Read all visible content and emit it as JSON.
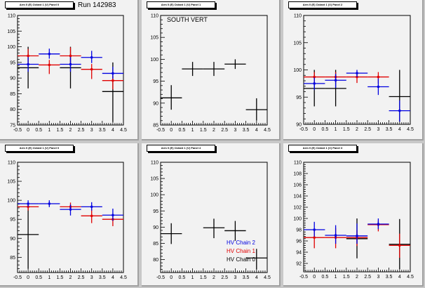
{
  "run_label": "Run 142983",
  "colors": {
    "chain0": "#000000",
    "chain1": "#e00000",
    "chain2": "#0000e0"
  },
  "legend": [
    {
      "label": "HV Chain 2",
      "color": "#0000e0"
    },
    {
      "label": "HV Chain 1",
      "color": "#e00000"
    },
    {
      "label": "HV Chain 0",
      "color": "#000000"
    }
  ],
  "chart_data": [
    {
      "type": "scatter",
      "title": "Arm 0 (E) Octant 1 (V) Panel 0",
      "annotation": "Run 142983",
      "xlim": [
        -0.5,
        4.5
      ],
      "ylim": [
        75,
        110
      ],
      "xticks": [
        "-0.5",
        "0",
        "0.5",
        "1",
        "1.5",
        "2",
        "2.5",
        "3",
        "3.5",
        "4",
        "4.5"
      ],
      "yticks": [
        75,
        80,
        85,
        90,
        95,
        100,
        105,
        110
      ],
      "series": [
        {
          "name": "HV Chain 0",
          "color": "#000000",
          "points": [
            {
              "x": 0,
              "y": 93.3,
              "xlo": -0.5,
              "xhi": 0.5,
              "ylo": 86.7,
              "yhi": 100
            },
            {
              "x": 2,
              "y": 93.3,
              "xlo": 1.5,
              "xhi": 2.5,
              "ylo": 86.7,
              "yhi": 100
            },
            {
              "x": 4,
              "y": 85.7,
              "xlo": 3.5,
              "xhi": 4.5,
              "ylo": 76,
              "yhi": 95
            }
          ]
        },
        {
          "name": "HV Chain 1",
          "color": "#e00000",
          "points": [
            {
              "x": 0,
              "y": 97.1,
              "xlo": -0.5,
              "xhi": 0.5,
              "ylo": 94.5,
              "yhi": 99.3
            },
            {
              "x": 1,
              "y": 94.2,
              "xlo": 0.5,
              "xhi": 1.5,
              "ylo": 91.3,
              "yhi": 95.8
            },
            {
              "x": 2,
              "y": 97.1,
              "xlo": 1.5,
              "xhi": 2.5,
              "ylo": 94.5,
              "yhi": 99.8
            },
            {
              "x": 3,
              "y": 92.8,
              "xlo": 2.5,
              "xhi": 3.5,
              "ylo": 89.7,
              "yhi": 94.5
            },
            {
              "x": 4,
              "y": 89.2,
              "xlo": 3.5,
              "xhi": 4.5,
              "ylo": 86.4,
              "yhi": 90.8
            }
          ]
        },
        {
          "name": "HV Chain 2",
          "color": "#0000e0",
          "points": [
            {
              "x": 0,
              "y": 94.4,
              "xlo": -0.5,
              "xhi": 0.5,
              "ylo": 92,
              "yhi": 96.7
            },
            {
              "x": 1,
              "y": 97.7,
              "xlo": 0.5,
              "xhi": 1.5,
              "ylo": 96.2,
              "yhi": 99.4
            },
            {
              "x": 2,
              "y": 94.4,
              "xlo": 1.5,
              "xhi": 2.5,
              "ylo": 92,
              "yhi": 96.7
            },
            {
              "x": 3,
              "y": 96.6,
              "xlo": 2.5,
              "xhi": 3.5,
              "ylo": 94.8,
              "yhi": 98.7
            },
            {
              "x": 4,
              "y": 91.5,
              "xlo": 3.5,
              "xhi": 4.5,
              "ylo": 89.8,
              "yhi": 93.6
            }
          ]
        }
      ]
    },
    {
      "type": "scatter",
      "title": "Arm 0 (E) Octant 1 (V) Panel 1",
      "annotation": "SOUTH VERT",
      "xlim": [
        -0.5,
        4.5
      ],
      "ylim": [
        85,
        110
      ],
      "xticks": [
        "-0.5",
        "0",
        "0.5",
        "1",
        "1.5",
        "2",
        "2.5",
        "3",
        "3.5",
        "4",
        "4.5"
      ],
      "yticks": [
        85,
        90,
        95,
        100,
        105,
        110
      ],
      "series": [
        {
          "name": "HV Chain 0",
          "color": "#000000",
          "points": [
            {
              "x": 0,
              "y": 91.2,
              "xlo": -0.5,
              "xhi": 0.5,
              "ylo": 88.5,
              "yhi": 94.1
            },
            {
              "x": 1,
              "y": 97.8,
              "xlo": 0.5,
              "xhi": 1.5,
              "ylo": 96.2,
              "yhi": 99.4
            },
            {
              "x": 2,
              "y": 97.8,
              "xlo": 1.5,
              "xhi": 2.5,
              "ylo": 96.2,
              "yhi": 99.4
            },
            {
              "x": 3,
              "y": 98.9,
              "xlo": 2.5,
              "xhi": 3.5,
              "ylo": 97.8,
              "yhi": 100
            },
            {
              "x": 4,
              "y": 88.5,
              "xlo": 3.5,
              "xhi": 4.5,
              "ylo": 86,
              "yhi": 91.1
            }
          ]
        }
      ]
    },
    {
      "type": "scatter",
      "title": "Arm 0 (E) Octant 1 (V) Panel 2",
      "annotation": "",
      "xlim": [
        -0.5,
        4.5
      ],
      "ylim": [
        90,
        110
      ],
      "xticks": [
        "-0.5",
        "0",
        "0.5",
        "1",
        "1.5",
        "2",
        "2.5",
        "3",
        "3.5",
        "4",
        "4.5"
      ],
      "yticks": [
        90,
        95,
        100,
        105,
        110
      ],
      "series": [
        {
          "name": "HV Chain 0",
          "color": "#000000",
          "points": [
            {
              "x": 0,
              "y": 96.6,
              "xlo": -0.5,
              "xhi": 0.5,
              "ylo": 93.3,
              "yhi": 100
            },
            {
              "x": 1,
              "y": 96.6,
              "xlo": 0.5,
              "xhi": 1.5,
              "ylo": 93.3,
              "yhi": 100
            },
            {
              "x": 4,
              "y": 95.1,
              "xlo": 3.5,
              "xhi": 4.5,
              "ylo": 90.5,
              "yhi": 100
            }
          ]
        },
        {
          "name": "HV Chain 1",
          "color": "#e00000",
          "points": [
            {
              "x": 0,
              "y": 98.7,
              "xlo": -0.5,
              "xhi": 0.5,
              "ylo": 97.5,
              "yhi": 99.6
            },
            {
              "x": 1,
              "y": 98.7,
              "xlo": 0.5,
              "xhi": 1.5,
              "ylo": 97.5,
              "yhi": 99.6
            },
            {
              "x": 2,
              "y": 98.7,
              "xlo": 1.5,
              "xhi": 2.5,
              "ylo": 97.6,
              "yhi": 99.6
            },
            {
              "x": 3,
              "y": 98.7,
              "xlo": 2.5,
              "xhi": 3.5,
              "ylo": 97.5,
              "yhi": 99.6
            }
          ]
        },
        {
          "name": "HV Chain 2",
          "color": "#0000e0",
          "points": [
            {
              "x": 0,
              "y": 97.5,
              "xlo": -0.5,
              "xhi": 0.5,
              "ylo": 96.3,
              "yhi": 98.6
            },
            {
              "x": 1,
              "y": 98.1,
              "xlo": 0.5,
              "xhi": 1.5,
              "ylo": 96.7,
              "yhi": 99.3
            },
            {
              "x": 2,
              "y": 99.4,
              "xlo": 1.5,
              "xhi": 2.5,
              "ylo": 98.7,
              "yhi": 100
            },
            {
              "x": 3,
              "y": 96.9,
              "xlo": 2.5,
              "xhi": 3.5,
              "ylo": 95.4,
              "yhi": 98.4
            },
            {
              "x": 4,
              "y": 92.5,
              "xlo": 3.5,
              "xhi": 4.5,
              "ylo": 90.5,
              "yhi": 94.4
            }
          ]
        }
      ]
    },
    {
      "type": "scatter",
      "title": "Arm 0 (E) Octant 1 (V) Panel 0",
      "annotation": "",
      "xlim": [
        -0.5,
        4.5
      ],
      "ylim": [
        81,
        110
      ],
      "xticks": [
        "-0.5",
        "0",
        "0.5",
        "1",
        "1.5",
        "2",
        "2.5",
        "3",
        "3.5",
        "4",
        "4.5"
      ],
      "yticks": [
        85,
        90,
        95,
        100,
        105,
        110
      ],
      "series": [
        {
          "name": "HV Chain 0",
          "color": "#000000",
          "points": [
            {
              "x": 0,
              "y": 91,
              "xlo": -0.5,
              "xhi": 0.5,
              "ylo": 82,
              "yhi": 98
            }
          ]
        },
        {
          "name": "HV Chain 1",
          "color": "#e00000",
          "points": [
            {
              "x": 0,
              "y": 98.3,
              "xlo": -0.5,
              "xhi": 0.5,
              "ylo": 97.3,
              "yhi": 99
            },
            {
              "x": 2,
              "y": 98.3,
              "xlo": 1.5,
              "xhi": 2.5,
              "ylo": 97.3,
              "yhi": 99.4
            },
            {
              "x": 3,
              "y": 95.9,
              "xlo": 2.5,
              "xhi": 3.5,
              "ylo": 94,
              "yhi": 97.7
            },
            {
              "x": 4,
              "y": 95,
              "xlo": 3.5,
              "xhi": 4.5,
              "ylo": 93.2,
              "yhi": 96.1
            }
          ]
        },
        {
          "name": "HV Chain 2",
          "color": "#0000e0",
          "points": [
            {
              "x": 0,
              "y": 99.1,
              "xlo": -0.5,
              "xhi": 0.5,
              "ylo": 98.3,
              "yhi": 100
            },
            {
              "x": 1,
              "y": 99.1,
              "xlo": 0.5,
              "xhi": 1.5,
              "ylo": 98.2,
              "yhi": 100
            },
            {
              "x": 2,
              "y": 97.6,
              "xlo": 1.5,
              "xhi": 2.5,
              "ylo": 96,
              "yhi": 98.9
            },
            {
              "x": 3,
              "y": 98.3,
              "xlo": 2.5,
              "xhi": 3.5,
              "ylo": 97.3,
              "yhi": 99.5
            },
            {
              "x": 4,
              "y": 96.1,
              "xlo": 3.5,
              "xhi": 4.5,
              "ylo": 94.6,
              "yhi": 97.8
            }
          ]
        }
      ]
    },
    {
      "type": "scatter",
      "title": "Arm 0 (E) Octant 1 (V) Panel 4",
      "annotation": "",
      "legend_placement": "bottom-right",
      "xlim": [
        -0.5,
        4.5
      ],
      "ylim": [
        76,
        110
      ],
      "xticks": [
        "-0.5",
        "0",
        "0.5",
        "1",
        "1.5",
        "2",
        "2.5",
        "3",
        "3.5",
        "4",
        "4.5"
      ],
      "yticks": [
        80,
        85,
        90,
        95,
        100,
        105,
        110
      ],
      "series": [
        {
          "name": "HV Chain 0",
          "color": "#000000",
          "points": [
            {
              "x": 0,
              "y": 88,
              "xlo": -0.5,
              "xhi": 0.5,
              "ylo": 84.8,
              "yhi": 91.2
            },
            {
              "x": 2,
              "y": 89.8,
              "xlo": 1.5,
              "xhi": 2.5,
              "ylo": 86.6,
              "yhi": 92.6
            },
            {
              "x": 3,
              "y": 88.9,
              "xlo": 2.5,
              "xhi": 3.5,
              "ylo": 85.8,
              "yhi": 91.9
            },
            {
              "x": 4,
              "y": 80.5,
              "xlo": 3.5,
              "xhi": 4.5,
              "ylo": 77,
              "yhi": 83.3
            }
          ]
        }
      ]
    },
    {
      "type": "scatter",
      "title": "Arm 0 (E) Octant 1 (V) Panel 3",
      "annotation": "",
      "xlim": [
        -0.5,
        4.5
      ],
      "ylim": [
        90.5,
        110
      ],
      "xticks": [
        "-0.5",
        "0",
        "0.5",
        "1",
        "1.5",
        "2",
        "2.5",
        "3",
        "3.5",
        "4",
        "4.5"
      ],
      "yticks": [
        92,
        94,
        96,
        98,
        100,
        102,
        104,
        106,
        108,
        110
      ],
      "series": [
        {
          "name": "HV Chain 0",
          "color": "#000000",
          "points": [
            {
              "x": 2,
              "y": 96.4,
              "xlo": 1.5,
              "xhi": 2.5,
              "ylo": 92.9,
              "yhi": 100
            },
            {
              "x": 4,
              "y": 95.4,
              "xlo": 3.5,
              "xhi": 4.5,
              "ylo": 91,
              "yhi": 99.9
            }
          ]
        },
        {
          "name": "HV Chain 1",
          "color": "#e00000",
          "points": [
            {
              "x": 0,
              "y": 96.6,
              "xlo": -0.5,
              "xhi": 0.5,
              "ylo": 94.7,
              "yhi": 98
            },
            {
              "x": 1,
              "y": 96.6,
              "xlo": 0.5,
              "xhi": 1.5,
              "ylo": 94.7,
              "yhi": 98.3
            },
            {
              "x": 2,
              "y": 96.6,
              "xlo": 1.5,
              "xhi": 2.5,
              "ylo": 95.1,
              "yhi": 97.9
            },
            {
              "x": 3,
              "y": 98.9,
              "xlo": 2.5,
              "xhi": 3.5,
              "ylo": 97.7,
              "yhi": 99.6
            },
            {
              "x": 4,
              "y": 95.2,
              "xlo": 3.5,
              "xhi": 4.5,
              "ylo": 93,
              "yhi": 97.3
            }
          ]
        },
        {
          "name": "HV Chain 2",
          "color": "#0000e0",
          "points": [
            {
              "x": 0,
              "y": 98,
              "xlo": -0.5,
              "xhi": 0.5,
              "ylo": 96.8,
              "yhi": 99.4
            },
            {
              "x": 1,
              "y": 97,
              "xlo": 0.5,
              "xhi": 1.5,
              "ylo": 95.5,
              "yhi": 98.8
            },
            {
              "x": 2,
              "y": 96.9,
              "xlo": 1.5,
              "xhi": 2.5,
              "ylo": 95.5,
              "yhi": 99.1
            },
            {
              "x": 3,
              "y": 99,
              "xlo": 2.5,
              "xhi": 3.5,
              "ylo": 98.1,
              "yhi": 100
            }
          ]
        }
      ]
    }
  ]
}
